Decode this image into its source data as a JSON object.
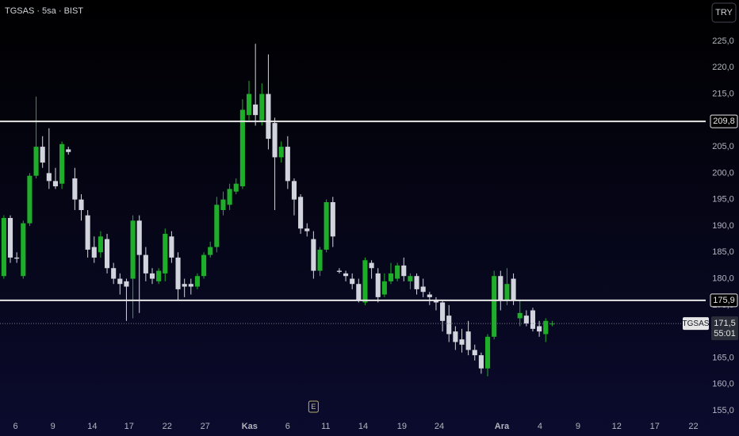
{
  "chart_data": {
    "type": "candlestick",
    "title": "TGSAS · 5sa · BIST",
    "currency": "TRY",
    "up_color": "#1fae2a",
    "down_color": "#d1d4dc",
    "x": [
      0,
      1,
      2,
      3,
      4,
      5,
      6,
      7,
      8,
      9,
      10,
      11,
      12,
      13,
      14,
      15,
      16,
      17,
      18,
      19,
      20,
      21,
      22,
      23,
      24,
      25,
      26,
      27,
      28,
      29,
      30,
      31,
      32,
      33,
      34,
      35,
      36,
      37,
      38,
      39,
      40,
      41,
      42,
      43,
      44,
      45,
      46,
      47,
      48,
      49,
      50,
      51,
      52,
      53,
      54,
      55,
      56,
      57,
      58,
      59,
      60,
      61,
      62,
      63,
      64,
      65,
      66,
      67,
      68,
      69,
      70,
      71,
      72,
      73,
      74,
      75,
      76,
      77,
      78,
      79,
      80,
      81,
      82,
      83,
      84,
      85
    ],
    "open": [
      180.5,
      191.5,
      184,
      180.5,
      190.5,
      199.5,
      205,
      200,
      198.5,
      198,
      204.5,
      199,
      195,
      192,
      186,
      185,
      187.5,
      182,
      180,
      179.5,
      180,
      191,
      184.5,
      181,
      179.5,
      181,
      188,
      184,
      179,
      179,
      178.5,
      180.5,
      184.5,
      186,
      193,
      194,
      196.5,
      197.5,
      211,
      213,
      210,
      215,
      209.5,
      203,
      205,
      198.5,
      195.5,
      189.5,
      187.5,
      181.5,
      185.5,
      194.5,
      181.5,
      181,
      180,
      179,
      175.5,
      183,
      181,
      177,
      179.5,
      180,
      182.5,
      179.5,
      180.5,
      178.5,
      177,
      176,
      175.5,
      173,
      170,
      168.5,
      170,
      166.5,
      165.5,
      163,
      169,
      180.5,
      176,
      180,
      172.5,
      173,
      174,
      171,
      169.5,
      171.5
    ],
    "high": [
      192,
      192,
      185,
      191,
      200,
      214.5,
      207,
      208.5,
      201,
      206,
      205,
      201,
      196,
      193,
      188,
      189,
      188.5,
      183,
      181,
      180,
      192,
      192,
      186,
      182,
      182,
      189.5,
      189,
      185,
      180,
      180,
      181,
      185,
      187,
      195.5,
      196.5,
      198,
      199,
      214,
      217.5,
      224.5,
      217,
      222.5,
      210.5,
      206,
      207,
      199,
      196,
      190.5,
      189,
      186,
      195,
      195.5,
      182,
      181.5,
      181,
      180,
      184,
      183.5,
      182,
      181,
      183,
      183,
      184,
      181,
      181,
      180,
      177.5,
      176.5,
      176,
      175,
      171,
      170.5,
      172,
      167.5,
      166,
      169.5,
      181.5,
      181.5,
      182,
      181,
      176,
      174,
      174.5,
      172,
      172.5,
      172
    ],
    "low": [
      180,
      183,
      183,
      180,
      190,
      199,
      201,
      197,
      197,
      197,
      203.5,
      193,
      191,
      184,
      183,
      184,
      181,
      179,
      177,
      172,
      172.5,
      173.5,
      179.5,
      179,
      179,
      179.5,
      183,
      176,
      176.5,
      177,
      178,
      180,
      184,
      185,
      192,
      193,
      196,
      197,
      210,
      209,
      209,
      204.5,
      193,
      202,
      197,
      192,
      188.5,
      188,
      180,
      180.5,
      185,
      186,
      181,
      179.5,
      178,
      175.5,
      175,
      180,
      175.5,
      176.5,
      179,
      179.5,
      179.5,
      178,
      177,
      176.5,
      175,
      174,
      170,
      168,
      166.5,
      166,
      165.5,
      164.5,
      162,
      161.5,
      168.5,
      174,
      175,
      175,
      171,
      171,
      170,
      169,
      168,
      171
    ],
    "close": [
      191.5,
      184,
      183.8,
      190.5,
      199.5,
      205,
      202,
      198.5,
      197.5,
      205.5,
      204,
      195,
      193,
      185.5,
      184,
      188,
      182,
      180,
      179,
      178.5,
      191,
      184.5,
      181,
      180,
      181.5,
      188.5,
      184,
      178,
      178.5,
      178.5,
      180.5,
      184.5,
      186,
      194,
      195,
      197,
      198,
      212,
      215,
      211,
      215,
      206.5,
      203,
      205,
      198.5,
      195,
      189.5,
      189,
      181.5,
      185.5,
      194.5,
      188,
      181.3,
      180.5,
      179,
      176,
      183.5,
      182,
      176.5,
      179.5,
      181,
      182.5,
      180.5,
      180.5,
      178,
      177.5,
      176.5,
      175.5,
      172,
      169.5,
      168,
      167.5,
      166.5,
      165.5,
      163,
      169,
      180.5,
      176,
      179,
      176,
      173.5,
      171.5,
      170.5,
      170,
      172,
      171.5
    ],
    "xlim": [
      -0.6,
      108.8
    ],
    "ylim": [
      153.5,
      232.8
    ],
    "xticks": [
      {
        "value": 1.8,
        "label": "6"
      },
      {
        "value": 7.6,
        "label": "9"
      },
      {
        "value": 13.7,
        "label": "14"
      },
      {
        "value": 19.4,
        "label": "17"
      },
      {
        "value": 25.3,
        "label": "22"
      },
      {
        "value": 31.2,
        "label": "27"
      },
      {
        "value": 38.1,
        "label": "Kas"
      },
      {
        "value": 44,
        "label": "6"
      },
      {
        "value": 49.9,
        "label": "11"
      },
      {
        "value": 55.7,
        "label": "14"
      },
      {
        "value": 61.7,
        "label": "19"
      },
      {
        "value": 67.5,
        "label": "24"
      },
      {
        "value": 77.2,
        "label": "Ara"
      },
      {
        "value": 83.1,
        "label": "4"
      },
      {
        "value": 89,
        "label": "9"
      },
      {
        "value": 95,
        "label": "12"
      },
      {
        "value": 100.9,
        "label": "17"
      },
      {
        "value": 106.9,
        "label": "22"
      }
    ],
    "yticks": [
      {
        "value": 155,
        "label": "155,0"
      },
      {
        "value": 160,
        "label": "160,0"
      },
      {
        "value": 165,
        "label": "165,0"
      },
      {
        "value": 170,
        "label": "170,0"
      },
      {
        "value": 175,
        "label": "175,0"
      },
      {
        "value": 180,
        "label": "180,0"
      },
      {
        "value": 185,
        "label": "185,0"
      },
      {
        "value": 190,
        "label": "190,0"
      },
      {
        "value": 195,
        "label": "195,0"
      },
      {
        "value": 200,
        "label": "200,0"
      },
      {
        "value": 205,
        "label": "205,0"
      },
      {
        "value": 210,
        "label": "210,0"
      },
      {
        "value": 215,
        "label": "215,0"
      },
      {
        "value": 220,
        "label": "220,0"
      },
      {
        "value": 225,
        "label": "225,0"
      }
    ],
    "hlines": [
      {
        "value": 209.8,
        "label": "209,8"
      },
      {
        "value": 175.9,
        "label": "175,9"
      }
    ],
    "last_price": {
      "value": 171.5,
      "label": "171,5",
      "countdown": "55:01",
      "symbol": "TGSAS"
    },
    "events": [
      {
        "x": 48,
        "label": "E"
      }
    ]
  }
}
